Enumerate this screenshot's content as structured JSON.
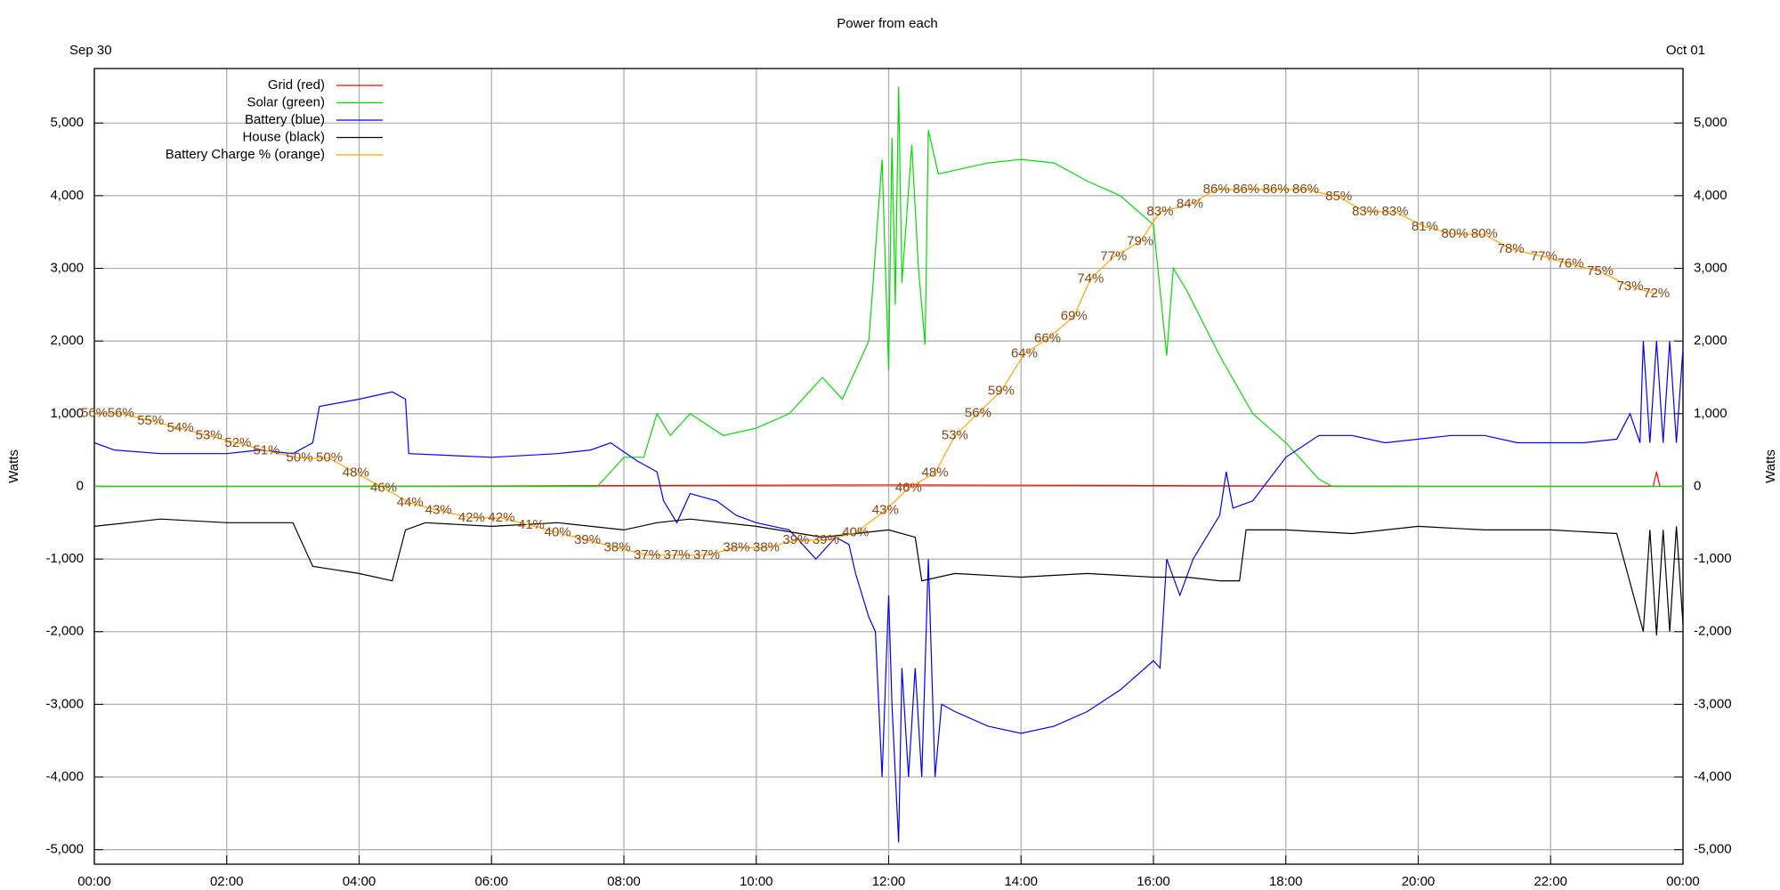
{
  "chart_data": {
    "type": "line",
    "title": "Power from each",
    "date_left": "Sep 30",
    "date_right": "Oct 01",
    "ylabel": "Watts",
    "y2label": "Watts",
    "xlim": [
      0,
      24
    ],
    "xticks": [
      {
        "value": 0,
        "label": "00:00"
      },
      {
        "value": 2,
        "label": "02:00"
      },
      {
        "value": 4,
        "label": "04:00"
      },
      {
        "value": 6,
        "label": "06:00"
      },
      {
        "value": 8,
        "label": "08:00"
      },
      {
        "value": 10,
        "label": "10:00"
      },
      {
        "value": 12,
        "label": "12:00"
      },
      {
        "value": 14,
        "label": "14:00"
      },
      {
        "value": 16,
        "label": "16:00"
      },
      {
        "value": 18,
        "label": "18:00"
      },
      {
        "value": 20,
        "label": "20:00"
      },
      {
        "value": 22,
        "label": "22:00"
      },
      {
        "value": 24,
        "label": "00:00"
      }
    ],
    "ylim": [
      -5200,
      5750
    ],
    "yticks": [
      {
        "value": -5000,
        "label": "-5,000"
      },
      {
        "value": -4000,
        "label": "-4,000"
      },
      {
        "value": -3000,
        "label": "-3,000"
      },
      {
        "value": -2000,
        "label": "-2,000"
      },
      {
        "value": -1000,
        "label": "-1,000"
      },
      0,
      {
        "value": 1000,
        "label": "1,000"
      },
      {
        "value": 2000,
        "label": "2,000"
      },
      {
        "value": 3000,
        "label": "3,000"
      },
      {
        "value": 4000,
        "label": "4,000"
      },
      {
        "value": 5000,
        "label": "5,000"
      }
    ],
    "y2lim": [
      -4.4,
      102.2
    ],
    "grid": true,
    "legend": "upper left",
    "series": [
      {
        "name": "Grid (red)",
        "color": "#ff0000",
        "x": [
          0,
          4,
          8,
          12,
          16,
          20,
          23.55,
          23.6,
          23.65,
          24
        ],
        "values": [
          0,
          0,
          10,
          20,
          10,
          0,
          0,
          200,
          0,
          0
        ]
      },
      {
        "name": "Solar (green)",
        "color": "#00dd00",
        "x": [
          0,
          7.6,
          8.0,
          8.3,
          8.5,
          8.7,
          9.0,
          9.5,
          10.0,
          10.5,
          11.0,
          11.3,
          11.7,
          11.9,
          12.0,
          12.05,
          12.1,
          12.15,
          12.2,
          12.35,
          12.45,
          12.55,
          12.6,
          12.75,
          13.5,
          14.0,
          14.5,
          15.0,
          15.5,
          16.0,
          16.2,
          16.3,
          16.5,
          17.0,
          17.5,
          18.0,
          18.5,
          18.7,
          24
        ],
        "values": [
          0,
          0,
          400,
          400,
          1000,
          700,
          1000,
          700,
          800,
          1000,
          1500,
          1200,
          2000,
          4500,
          1600,
          4800,
          2500,
          5500,
          2800,
          4700,
          3000,
          1950,
          4900,
          4300,
          4450,
          4500,
          4450,
          4200,
          4000,
          3600,
          1800,
          3000,
          2700,
          1800,
          1000,
          600,
          100,
          0,
          0
        ]
      },
      {
        "name": "Battery (blue)",
        "color": "#0000ff",
        "x": [
          0,
          0.3,
          1,
          2,
          2.5,
          3.0,
          3.3,
          3.4,
          4.0,
          4.5,
          4.7,
          4.75,
          6,
          7,
          7.5,
          7.8,
          8.2,
          8.5,
          8.6,
          8.8,
          9.0,
          9.4,
          9.7,
          10.0,
          10.5,
          10.9,
          11.2,
          11.4,
          11.5,
          11.7,
          11.8,
          11.9,
          12.0,
          12.05,
          12.15,
          12.2,
          12.3,
          12.4,
          12.5,
          12.6,
          12.7,
          12.8,
          13.0,
          13.5,
          14,
          14.5,
          15,
          15.5,
          16,
          16.1,
          16.2,
          16.4,
          16.6,
          17,
          17.1,
          17.2,
          17.5,
          18,
          18.5,
          19,
          19.5,
          20,
          20.5,
          21,
          21.5,
          22,
          22.5,
          23,
          23.2,
          23.35,
          23.4,
          23.5,
          23.6,
          23.7,
          23.8,
          23.9,
          24
        ],
        "values": [
          600,
          500,
          450,
          450,
          500,
          450,
          600,
          1100,
          1200,
          1300,
          1200,
          450,
          400,
          450,
          500,
          600,
          350,
          200,
          -200,
          -500,
          -100,
          -200,
          -400,
          -500,
          -600,
          -1000,
          -700,
          -800,
          -1200,
          -1800,
          -2000,
          -4000,
          -1500,
          -3000,
          -4900,
          -2500,
          -4000,
          -2500,
          -4000,
          -1000,
          -4000,
          -3000,
          -3100,
          -3300,
          -3400,
          -3300,
          -3100,
          -2800,
          -2400,
          -2500,
          -1000,
          -1500,
          -1000,
          -400,
          200,
          -300,
          -200,
          400,
          700,
          700,
          600,
          650,
          700,
          700,
          600,
          600,
          600,
          650,
          1000,
          600,
          2000,
          600,
          2000,
          600,
          2000,
          600,
          1900
        ]
      },
      {
        "name": "House (black)",
        "color": "#000000",
        "x": [
          0,
          1,
          2,
          3,
          3.3,
          4,
          4.5,
          4.7,
          5,
          6,
          7,
          8,
          8.5,
          9,
          10,
          11,
          12,
          12.4,
          12.5,
          13,
          14,
          15,
          16,
          16.5,
          17,
          17.3,
          17.4,
          18,
          19,
          20,
          21,
          22,
          23,
          23.4,
          23.5,
          23.6,
          23.7,
          23.8,
          23.9,
          24
        ],
        "values": [
          -550,
          -450,
          -500,
          -500,
          -1100,
          -1200,
          -1300,
          -600,
          -500,
          -550,
          -500,
          -600,
          -500,
          -450,
          -550,
          -700,
          -600,
          -700,
          -1300,
          -1200,
          -1250,
          -1200,
          -1250,
          -1250,
          -1300,
          -1300,
          -600,
          -600,
          -650,
          -550,
          -600,
          -600,
          -650,
          -2000,
          -600,
          -2050,
          -600,
          -2000,
          -550,
          -1900
        ]
      },
      {
        "name": "Battery Charge % (orange)",
        "color": "#ffa500",
        "axis": "y2",
        "label_color": "#8b4513",
        "x": [
          0.0,
          0.4,
          0.85,
          1.3,
          1.73,
          2.17,
          2.6,
          3.1,
          3.55,
          3.95,
          4.37,
          4.77,
          5.2,
          5.7,
          6.15,
          6.6,
          7.0,
          7.45,
          7.9,
          8.35,
          8.8,
          9.25,
          9.7,
          10.15,
          10.6,
          11.05,
          11.5,
          11.95,
          12.3,
          12.7,
          13.0,
          13.35,
          13.7,
          14.05,
          14.4,
          14.8,
          15.05,
          15.4,
          15.8,
          16.1,
          16.55,
          16.95,
          17.4,
          17.85,
          18.3,
          18.8,
          19.2,
          19.65,
          20.1,
          20.55,
          21.0,
          21.4,
          21.9,
          22.3,
          22.75,
          23.2,
          23.6
        ],
        "values": [
          56,
          56,
          55,
          54,
          53,
          52,
          51,
          50,
          50,
          48,
          46,
          44,
          43,
          42,
          42,
          41,
          40,
          39,
          38,
          37,
          37,
          37,
          38,
          38,
          39,
          39,
          40,
          43,
          46,
          48,
          53,
          56,
          59,
          64,
          66,
          69,
          74,
          77,
          79,
          83,
          84,
          86,
          86,
          86,
          86,
          85,
          83,
          83,
          81,
          80,
          80,
          78,
          77,
          76,
          75,
          73,
          72
        ],
        "value_labels": [
          "56%",
          "56%",
          "55%",
          "54%",
          "53%",
          "52%",
          "51%",
          "50%",
          "50%",
          "48%",
          "46%",
          "44%",
          "43%",
          "42%",
          "42%",
          "41%",
          "40%",
          "39%",
          "38%",
          "37%",
          "37%",
          "37%",
          "38%",
          "38%",
          "39%",
          "39%",
          "40%",
          "43%",
          "46%",
          "48%",
          "53%",
          "56%",
          "59%",
          "64%",
          "66%",
          "69%",
          "74%",
          "77%",
          "79%",
          "83%",
          "84%",
          "86%",
          "86%",
          "86%",
          "86%",
          "85%",
          "83%",
          "83%",
          "81%",
          "80%",
          "80%",
          "78%",
          "77%",
          "76%",
          "75%",
          "73%",
          "72%"
        ]
      }
    ]
  }
}
